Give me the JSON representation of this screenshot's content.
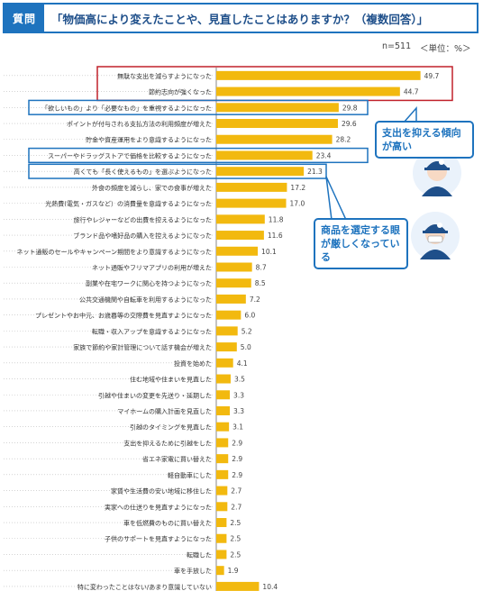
{
  "header": {
    "tag": "質問",
    "question": "「物価高により変えたことや、見直したことはありますか？（複数回答）」"
  },
  "meta": {
    "n": "n=511",
    "unit": "＜単位：%＞"
  },
  "callouts": [
    {
      "text": "支出を抑える傾向が高い"
    },
    {
      "text": "商品を選定する眼が厳しくなっている"
    }
  ],
  "colors": {
    "bar": "#f2b90f",
    "accent_blue": "#1e73be",
    "highlight_red": "#c0202a",
    "gridline": "#bbbbbb"
  },
  "icons": [
    "person-mascot-icon",
    "person-mascot-icon"
  ],
  "chart_data": {
    "type": "bar",
    "orientation": "horizontal",
    "title": "",
    "xlabel": "",
    "ylabel": "",
    "xlim": [
      0,
      50
    ],
    "grid": false,
    "categories": [
      "無駄な支出を減らすようになった",
      "節約志向が強くなった",
      "「欲しいもの」より「必要なもの」を重視するようになった",
      "ポイントが付与される支払方法の利用頻度が増えた",
      "貯金や資産運用をより意識するようになった",
      "スーパーやドラッグストアで価格を比較するようになった",
      "高くても「長く使えるもの」を選ぶようになった",
      "外食の頻度を減らし、家での食事が増えた",
      "光熱費(電気・ガスなど）の消費量を意識するようになった",
      "旅行やレジャーなどの出費を控えるようになった",
      "ブランド品や嗜好品の購入を控えるようになった",
      "ネット通販のセールやキャンペーン期間をより意識するようになった",
      "ネット通販やフリマアプリの利用が増えた",
      "副業や在宅ワークに関心を持つようになった",
      "公共交通機関や自転車を利用するようになった",
      "プレゼントやお中元、お歳暮等の交際費を見直すようになった",
      "転職・収入アップを意識するようになった",
      "家族で節約や家計管理について話す機会が増えた",
      "投資を始めた",
      "住む地域や住まいを見直した",
      "引越や住まいの変更を先送り・延期した",
      "マイホームの購入計画を見直した",
      "引越のタイミングを見直した",
      "支出を抑えるために引越をした",
      "省エネ家電に買い替えた",
      "軽自動車にした",
      "家賃や生活費の安い地域に移住した",
      "実家への仕送りを見直すようになった",
      "車を低燃費のものに買い替えた",
      "子供のサポートを見直すようになった",
      "転職した",
      "車を手放した",
      "特に変わったことはない/あまり意識していない"
    ],
    "values": [
      49.7,
      44.7,
      29.8,
      29.6,
      28.2,
      23.4,
      21.3,
      17.2,
      17.0,
      11.8,
      11.6,
      10.1,
      8.7,
      8.5,
      7.2,
      6.0,
      5.2,
      5.0,
      4.1,
      3.5,
      3.3,
      3.3,
      3.1,
      2.9,
      2.9,
      2.9,
      2.7,
      2.7,
      2.5,
      2.5,
      2.5,
      1.9,
      10.4
    ],
    "value_labels": [
      "49.7",
      "44.7",
      "29.8",
      "29.6",
      "28.2",
      "23.4",
      "21.3",
      "17.2",
      "17.0",
      "11.8",
      "11.6",
      "10.1",
      "8.7",
      "8.5",
      "7.2",
      "6.0",
      "5.2",
      "5.0",
      "4.1",
      "3.5",
      "3.3",
      "3.3",
      "3.1",
      "2.9",
      "2.9",
      "2.9",
      "2.7",
      "2.7",
      "2.5",
      "2.5",
      "2.5",
      "1.9",
      "10.4"
    ],
    "highlight_red": [
      0,
      1
    ],
    "highlight_blue": [
      2,
      5,
      6
    ]
  }
}
